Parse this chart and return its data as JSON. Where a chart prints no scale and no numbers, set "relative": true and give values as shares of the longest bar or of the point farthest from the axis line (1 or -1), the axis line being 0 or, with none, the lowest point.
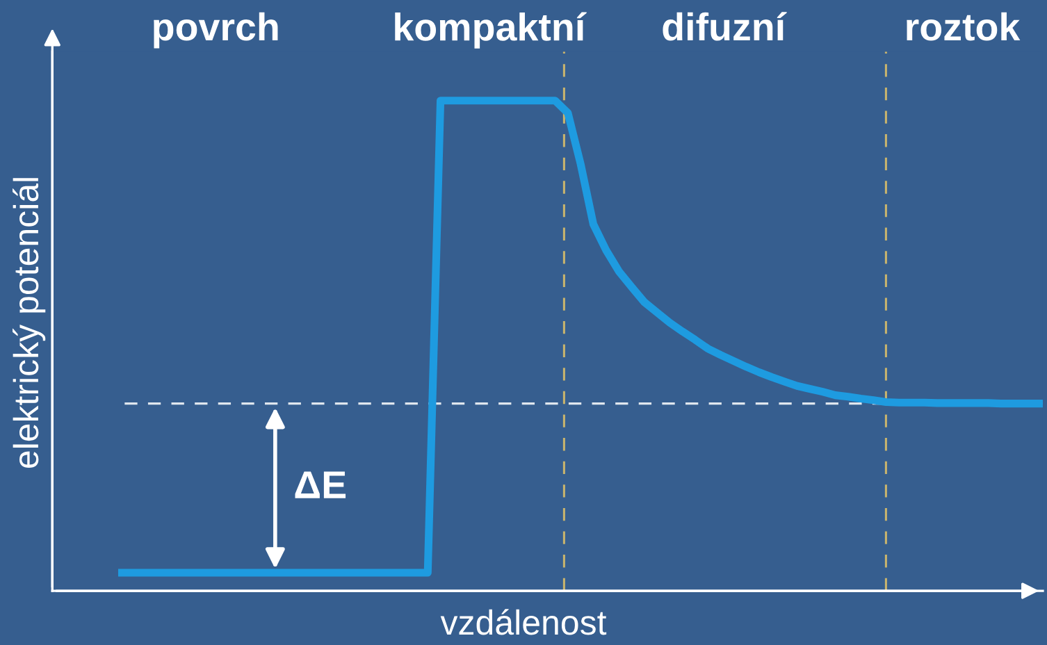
{
  "chart_data": {
    "type": "line",
    "relative": true,
    "xlabel": "vzdálenost",
    "ylabel": "elektrický potenciál",
    "annotations": [
      "povrch",
      "kompaktní",
      "difuzní",
      "roztok",
      "ΔE"
    ],
    "categories": [
      null,
      null,
      null,
      null,
      null,
      null,
      null,
      null,
      null,
      null,
      null,
      null,
      null,
      null,
      null,
      null,
      null,
      null,
      null,
      null,
      null,
      null,
      null,
      null,
      null,
      null,
      null,
      null,
      null,
      null,
      null,
      null,
      null,
      null,
      null,
      null,
      null,
      null,
      null,
      null,
      null,
      null,
      null,
      null,
      null,
      null,
      null,
      null,
      null,
      null,
      null,
      null,
      null,
      null,
      null,
      null,
      null,
      null,
      null,
      null,
      null,
      null,
      null,
      null,
      null,
      null,
      null,
      null,
      null,
      null,
      null,
      null,
      null
    ],
    "series": [
      {
        "color": "#1e9be0",
        "values": [
          0.037,
          0.037,
          0.037,
          0.037,
          0.037,
          0.037,
          0.037,
          0.037,
          0.037,
          0.037,
          0.037,
          0.037,
          0.037,
          0.037,
          0.037,
          0.037,
          0.037,
          0.037,
          0.037,
          0.037,
          0.037,
          0.037,
          0.037,
          0.037,
          0.037,
          1,
          1,
          1,
          1,
          1,
          1,
          1,
          1,
          1,
          1,
          0.975,
          0.871,
          0.748,
          0.695,
          0.652,
          0.62,
          0.589,
          0.568,
          0.547,
          0.529,
          0.512,
          0.494,
          0.481,
          0.469,
          0.457,
          0.446,
          0.436,
          0.427,
          0.418,
          0.412,
          0.406,
          0.399,
          0.396,
          0.392,
          0.389,
          0.385,
          0.384,
          0.384,
          0.384,
          0.383,
          0.383,
          0.383,
          0.383,
          0.383,
          0.382,
          0.382,
          0.382,
          0.382
        ]
      }
    ],
    "ref_lines": [
      {
        "axis": "y",
        "value": 0.382,
        "color": "#dfe6ee",
        "line_style": "dashed"
      }
    ],
    "marker": "none",
    "line_style": "solid"
  }
}
